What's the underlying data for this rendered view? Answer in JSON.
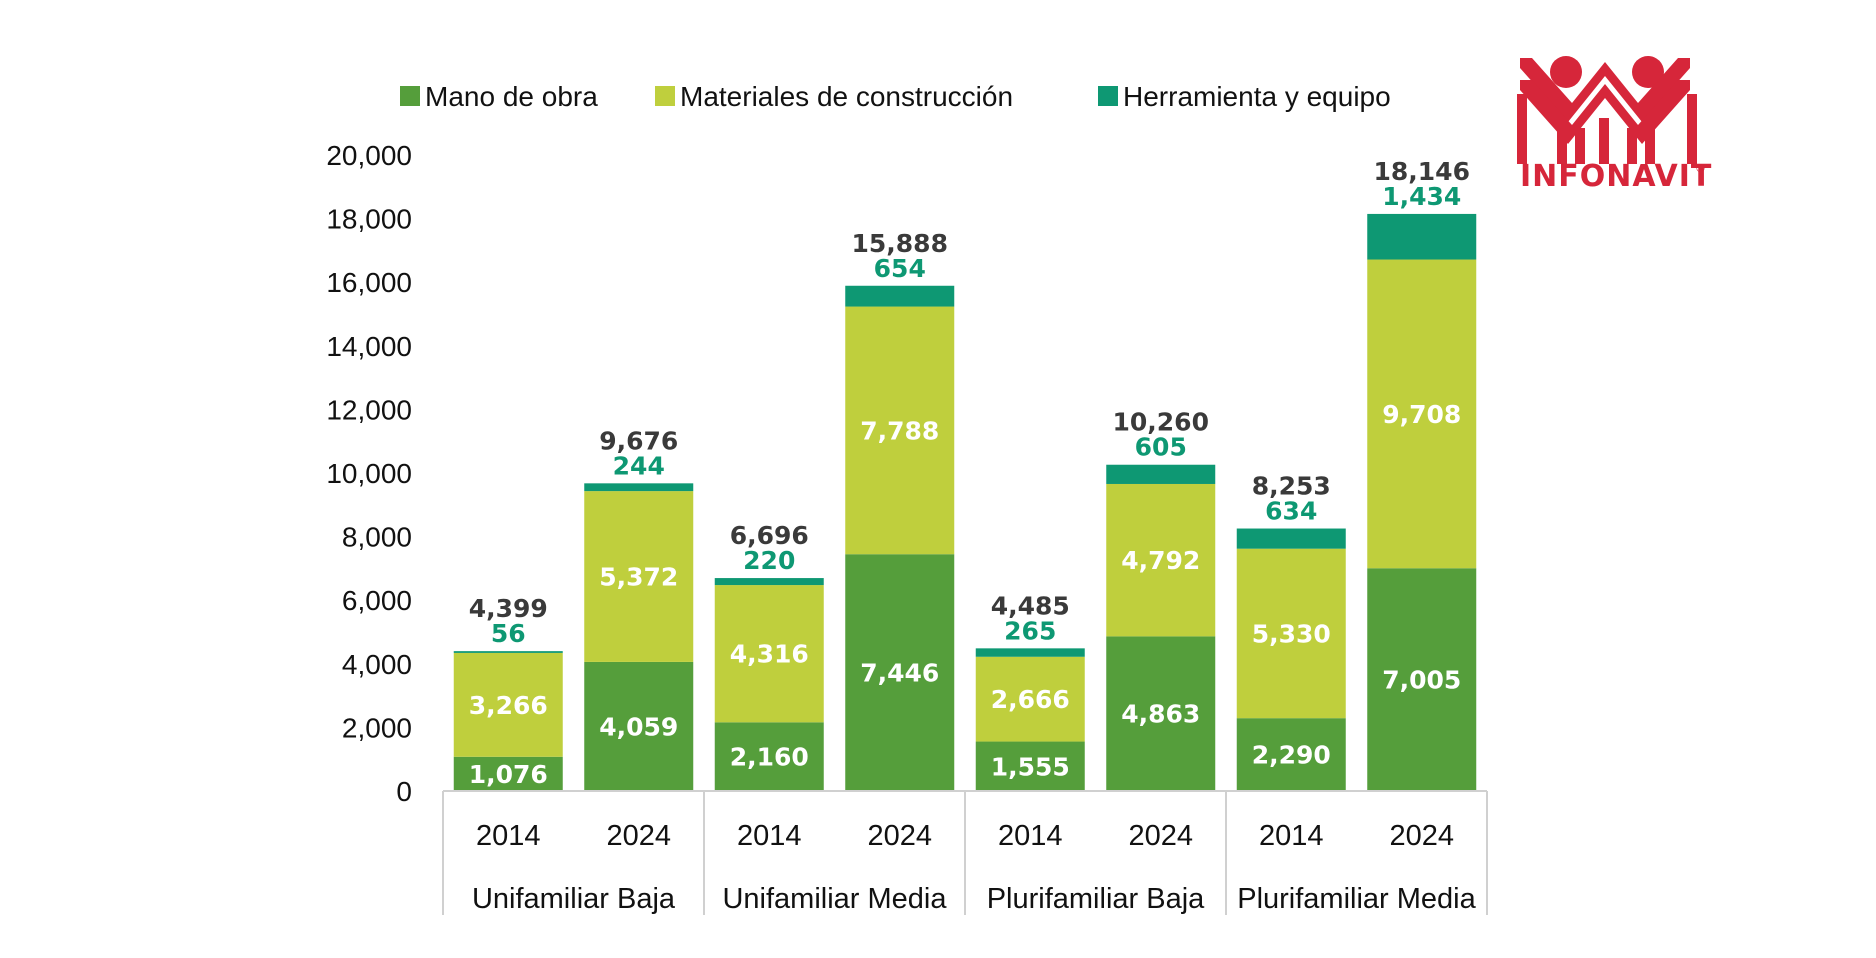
{
  "chart_data": {
    "type": "bar",
    "stacked": true,
    "title": "",
    "xlabel": "",
    "ylabel": "",
    "ylim": [
      0,
      20000
    ],
    "yticks": [
      0,
      2000,
      4000,
      6000,
      8000,
      10000,
      12000,
      14000,
      16000,
      18000,
      20000
    ],
    "ytick_labels": [
      "0",
      "2,000",
      "4,000",
      "6,000",
      "8,000",
      "10,000",
      "12,000",
      "14,000",
      "16,000",
      "18,000",
      "20,000"
    ],
    "grid": false,
    "legend_position": "top",
    "groups": [
      "Unifamiliar Baja",
      "Unifamiliar Media",
      "Plurifamiliar Baja",
      "Plurifamiliar Media"
    ],
    "categories": [
      "2014",
      "2024",
      "2014",
      "2024",
      "2014",
      "2024",
      "2014",
      "2024"
    ],
    "series": [
      {
        "name": "Mano de obra",
        "color": "#559e3b",
        "values": [
          1076,
          4059,
          2160,
          7446,
          1555,
          4863,
          2290,
          7005
        ],
        "labels": [
          "1,076",
          "4,059",
          "2,160",
          "7,446",
          "1,555",
          "4,863",
          "2,290",
          "7,005"
        ]
      },
      {
        "name": "Materiales de construcción",
        "color": "#bfcf3d",
        "values": [
          3266,
          5372,
          4316,
          7788,
          2666,
          4792,
          5330,
          9708
        ],
        "labels": [
          "3,266",
          "5,372",
          "4,316",
          "7,788",
          "2,666",
          "4,792",
          "5,330",
          "9,708"
        ]
      },
      {
        "name": "Herramienta y equipo",
        "color": "#0e9873",
        "values": [
          56,
          244,
          220,
          654,
          265,
          605,
          634,
          1434
        ],
        "labels": [
          "56",
          "244",
          "220",
          "654",
          "265",
          "605",
          "634",
          "1,434"
        ]
      }
    ],
    "totals": [
      4399,
      9676,
      6696,
      15888,
      4485,
      10260,
      8253,
      18146
    ],
    "total_labels": [
      "4,399",
      "9,676",
      "6,696",
      "15,888",
      "4,485",
      "10,260",
      "8,253",
      "18,146"
    ]
  },
  "legend": {
    "items": [
      {
        "label": "Mano de obra",
        "color": "#559e3b"
      },
      {
        "label": "Materiales de construcción",
        "color": "#bfcf3d"
      },
      {
        "label": "Herramienta y equipo",
        "color": "#0e9873"
      }
    ]
  },
  "logo": {
    "text": "INFONAVIT",
    "registered": "®",
    "color": "#d6263a"
  },
  "colors": {
    "total_label": "#3a3a3a",
    "axis_line": "#d0d0d0"
  }
}
